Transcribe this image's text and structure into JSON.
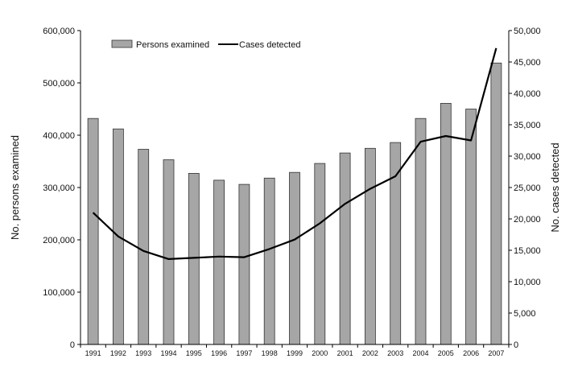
{
  "chart_data": {
    "type": "bar",
    "categories": [
      "1991",
      "1992",
      "1993",
      "1994",
      "1995",
      "1996",
      "1997",
      "1998",
      "1999",
      "2000",
      "2001",
      "2002",
      "2003",
      "2004",
      "2005",
      "2006",
      "2007"
    ],
    "series": [
      {
        "name": "Persons examined",
        "type": "bar",
        "axis": "left",
        "color": "#a6a6a6",
        "values": [
          432000,
          412000,
          373000,
          353000,
          327000,
          314000,
          306000,
          318000,
          329000,
          346000,
          366000,
          375000,
          386000,
          432000,
          461000,
          450000,
          538000
        ]
      },
      {
        "name": "Cases detected",
        "type": "line",
        "axis": "right",
        "color": "#000000",
        "values": [
          21000,
          17200,
          14900,
          13600,
          13800,
          14000,
          13900,
          15200,
          16700,
          19300,
          22400,
          24800,
          26800,
          32300,
          33200,
          32500,
          47200
        ]
      }
    ],
    "ylabel": "No. persons examined",
    "y2label": "No. cases detected",
    "ylim": [
      0,
      600000
    ],
    "y2lim": [
      0,
      50000
    ],
    "yticks": [
      "0",
      "100,000",
      "200,000",
      "300,000",
      "400,000",
      "500,000",
      "600,000"
    ],
    "y2ticks": [
      "0",
      "5,000",
      "10,000",
      "15,000",
      "20,000",
      "25,000",
      "30,000",
      "35,000",
      "40,000",
      "45,000",
      "50,000"
    ],
    "grid": false,
    "legend": "top-left"
  }
}
